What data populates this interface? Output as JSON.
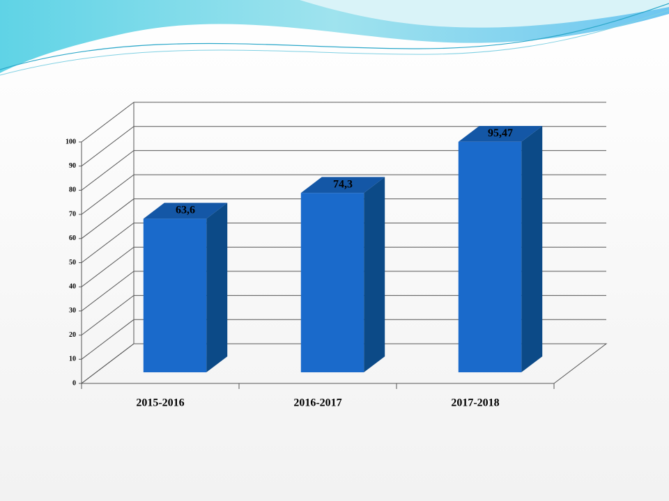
{
  "chart_data": {
    "type": "bar3d",
    "categories": [
      "2015-2016",
      "2016-2017",
      "2017-2018"
    ],
    "values": [
      63.6,
      74.3,
      95.47
    ],
    "value_labels": [
      "63,6",
      "74,3",
      "95,47"
    ],
    "color": "#1a6acb",
    "ylim": [
      0,
      100
    ],
    "yticks": [
      0,
      10,
      20,
      30,
      40,
      50,
      60,
      70,
      80,
      90,
      100
    ],
    "grid": true
  }
}
